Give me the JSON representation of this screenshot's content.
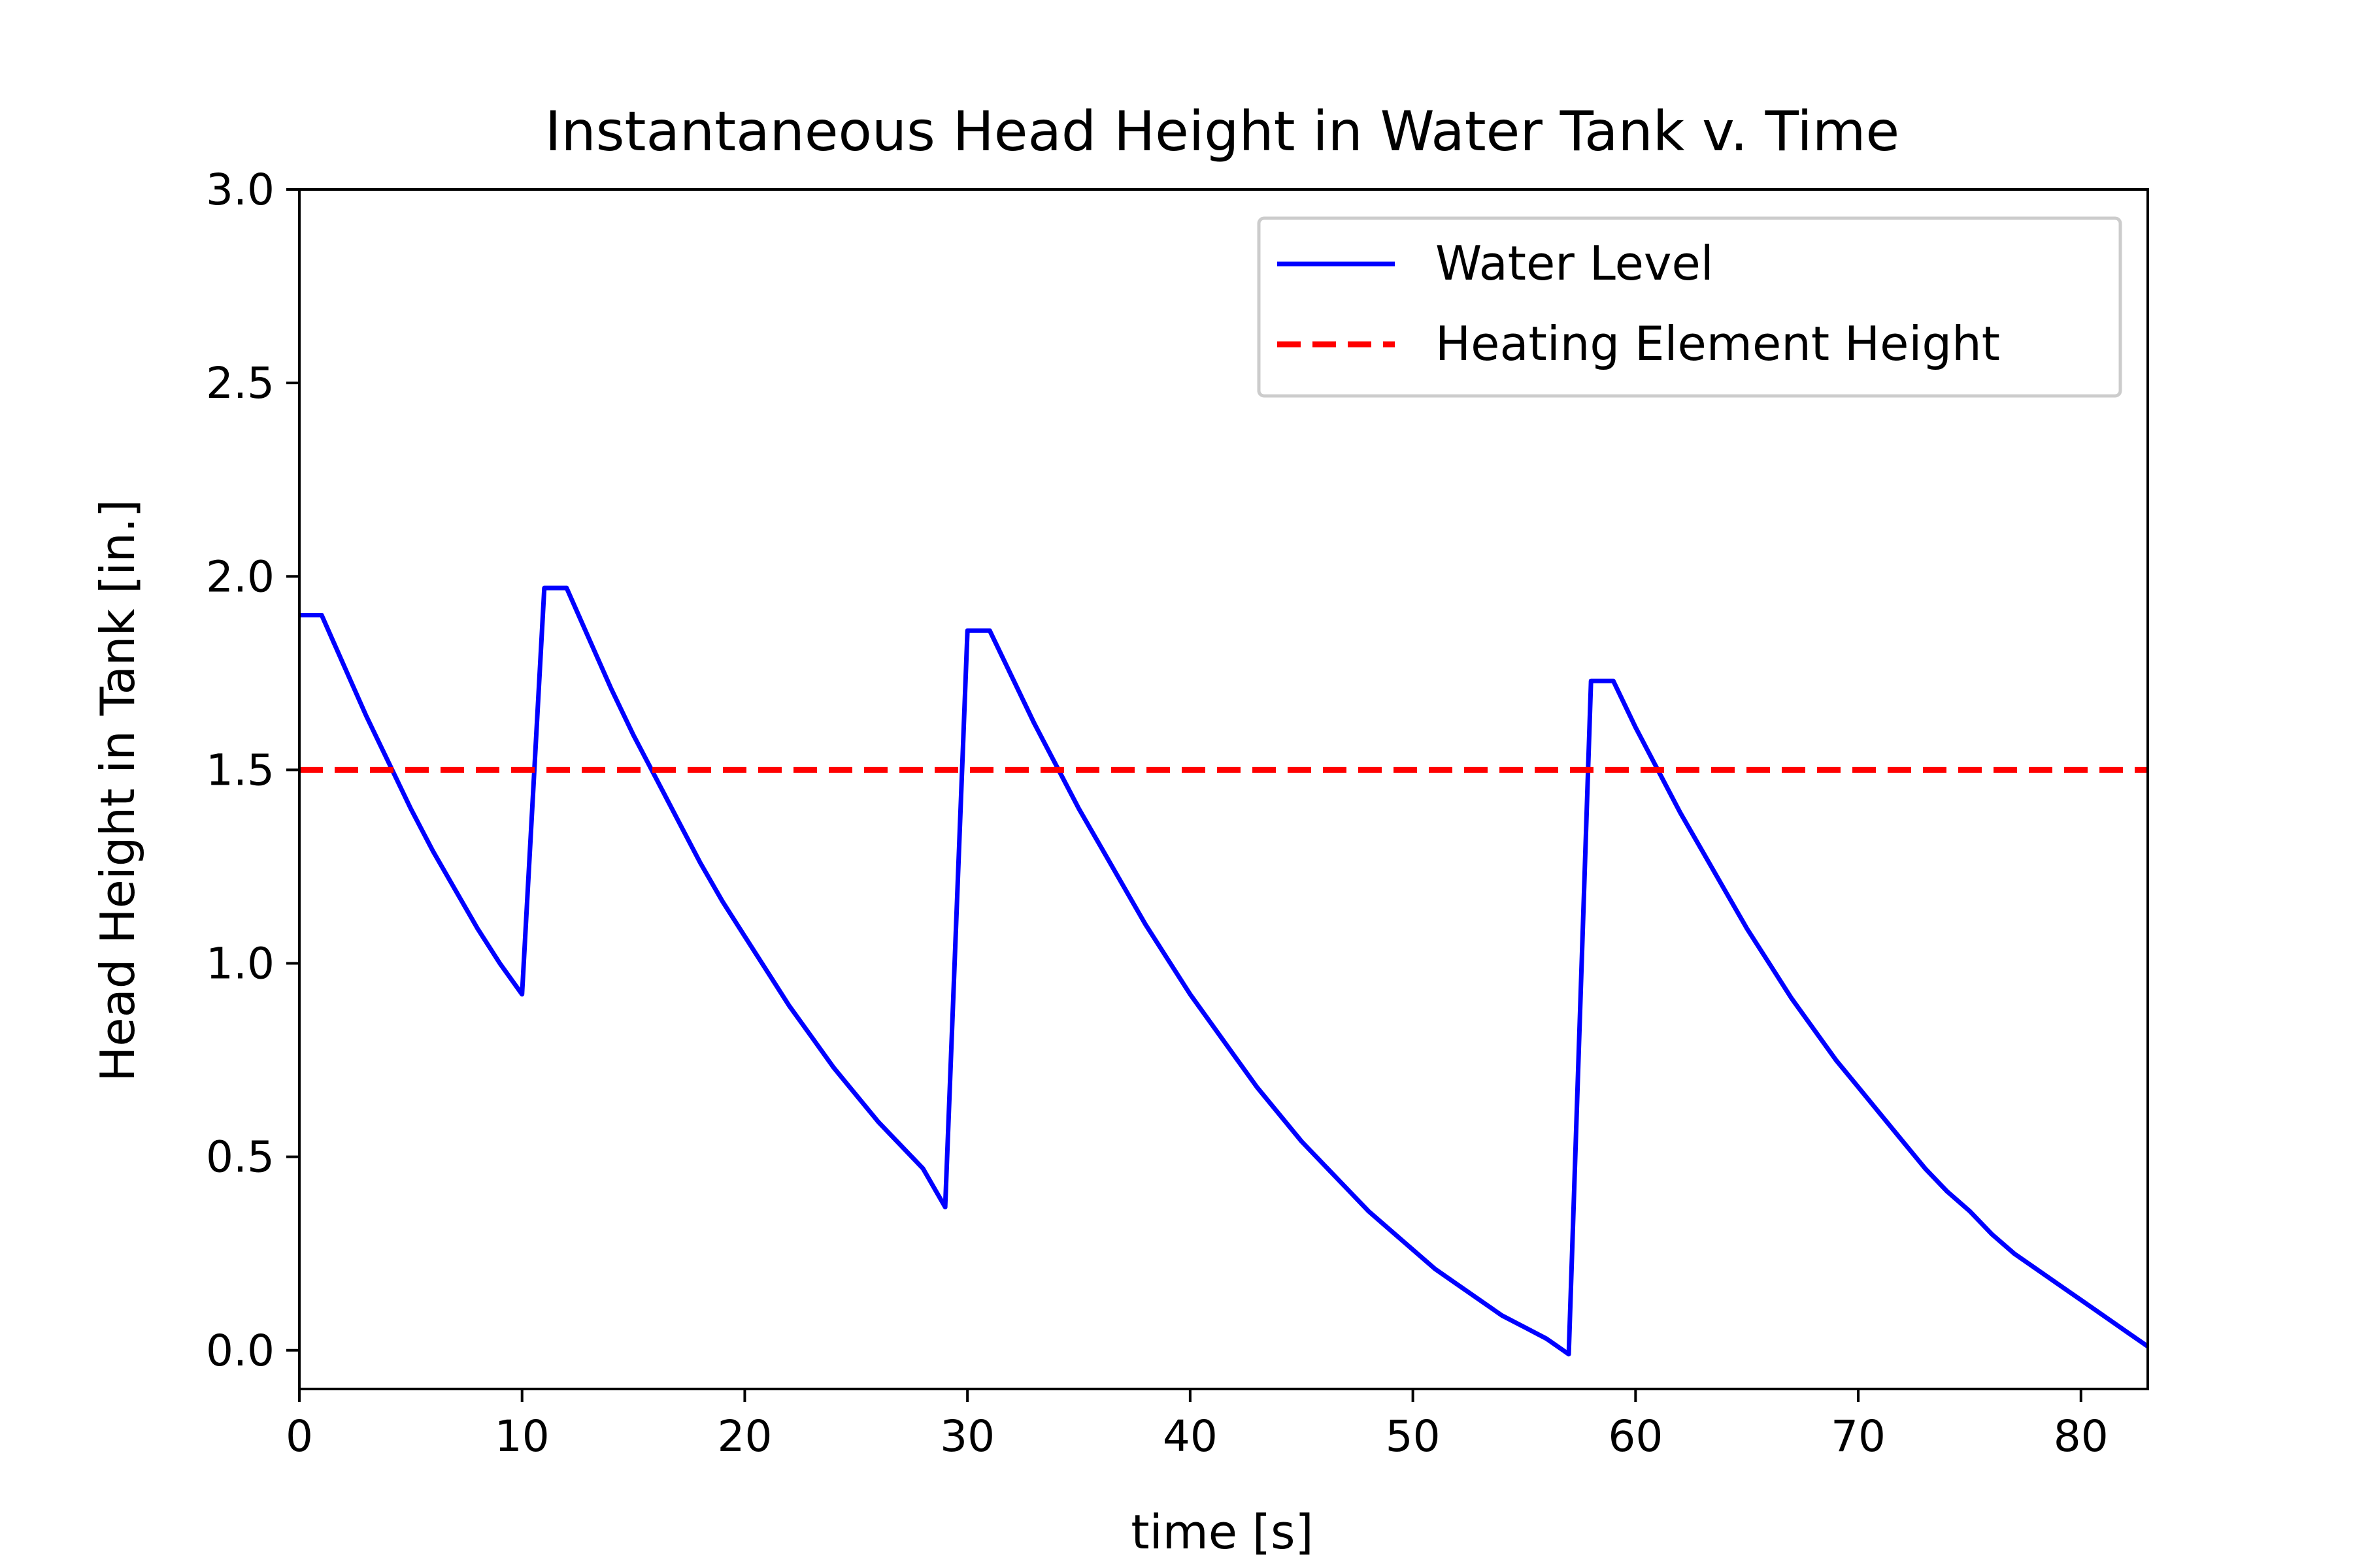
{
  "chart_data": {
    "type": "line",
    "title": "Instantaneous Head Height in Water Tank v. Time",
    "xlabel": "time [s]",
    "ylabel": "Head Height in Tank [in.]",
    "xlim": [
      0,
      83
    ],
    "ylim": [
      -0.1,
      3.0
    ],
    "xticks": [
      0,
      10,
      20,
      30,
      40,
      50,
      60,
      70,
      80
    ],
    "yticks": [
      0.0,
      0.5,
      1.0,
      1.5,
      2.0,
      2.5,
      3.0
    ],
    "xtick_labels": [
      "0",
      "10",
      "20",
      "30",
      "40",
      "50",
      "60",
      "70",
      "80"
    ],
    "ytick_labels": [
      "0.0",
      "0.5",
      "1.0",
      "1.5",
      "2.0",
      "2.5",
      "3.0"
    ],
    "grid": false,
    "legend_position": "top-right",
    "series": [
      {
        "name": "Water Level",
        "color": "#0000ff",
        "style": "solid",
        "x": [
          0,
          1,
          2,
          3,
          4,
          5,
          6,
          7,
          8,
          9,
          10,
          11,
          12,
          13,
          14,
          15,
          16,
          17,
          18,
          19,
          20,
          21,
          22,
          23,
          24,
          25,
          26,
          27,
          28,
          29,
          30,
          31,
          32,
          33,
          34,
          35,
          36,
          37,
          38,
          39,
          40,
          41,
          42,
          43,
          44,
          45,
          46,
          47,
          48,
          49,
          50,
          51,
          52,
          53,
          54,
          55,
          56,
          57,
          58,
          59,
          60,
          61,
          62,
          63,
          64,
          65,
          66,
          67,
          68,
          69,
          70,
          71,
          72,
          73,
          74,
          75,
          76,
          77,
          78,
          79,
          80,
          81,
          82,
          83
        ],
        "y": [
          1.9,
          1.9,
          1.77,
          1.64,
          1.52,
          1.4,
          1.29,
          1.19,
          1.09,
          1.0,
          0.92,
          1.97,
          1.97,
          1.84,
          1.71,
          1.59,
          1.48,
          1.37,
          1.26,
          1.16,
          1.07,
          0.98,
          0.89,
          0.81,
          0.73,
          0.66,
          0.59,
          0.53,
          0.47,
          0.37,
          1.86,
          1.86,
          1.74,
          1.62,
          1.51,
          1.4,
          1.3,
          1.2,
          1.1,
          1.01,
          0.92,
          0.84,
          0.76,
          0.68,
          0.61,
          0.54,
          0.48,
          0.42,
          0.36,
          0.31,
          0.26,
          0.21,
          0.17,
          0.13,
          0.09,
          0.06,
          0.03,
          -0.01,
          1.73,
          1.73,
          1.61,
          1.5,
          1.39,
          1.29,
          1.19,
          1.09,
          1.0,
          0.91,
          0.83,
          0.75,
          0.68,
          0.61,
          0.54,
          0.47,
          0.41,
          0.36,
          0.3,
          0.25,
          0.21,
          0.17,
          0.13,
          0.09,
          0.05,
          0.01
        ]
      },
      {
        "name": "Heating Element Height",
        "color": "#ff0000",
        "style": "dashed",
        "x": [
          0,
          83
        ],
        "y": [
          1.5,
          1.5
        ]
      }
    ]
  }
}
